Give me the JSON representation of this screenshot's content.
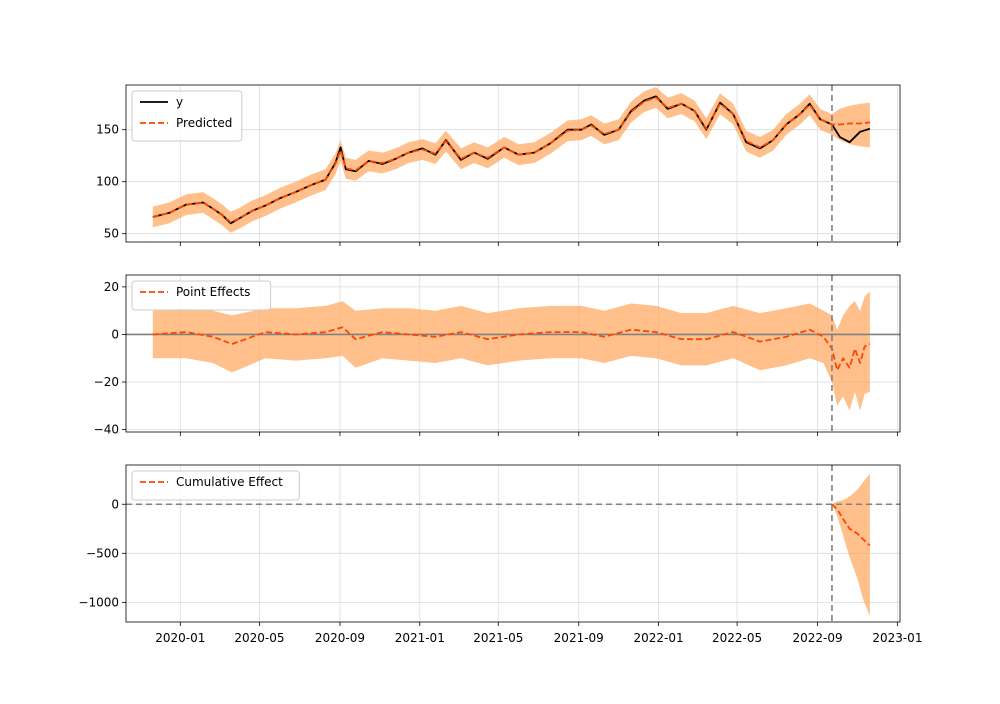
{
  "colors": {
    "observed": "#000000",
    "predicted": "#ff4500",
    "band": "#ffa55a",
    "reference": "#808080",
    "grid": "#dcdcdc"
  },
  "chart_data": [
    {
      "type": "line",
      "id": "observed-predicted",
      "ylim": [
        42,
        193
      ],
      "yticks": [
        50,
        100,
        150
      ],
      "ytick_labels": [
        "50",
        "100",
        "150"
      ],
      "legend": [
        "y",
        "Predicted"
      ],
      "legend_placement": "top-left",
      "grid": true,
      "intervention_date": "2022-09-23",
      "series": [
        {
          "name": "y",
          "color": "#000000",
          "style": "solid",
          "x": [
            "2019-11-20",
            "2019-12-15",
            "2020-01-10",
            "2020-02-05",
            "2020-02-20",
            "2020-03-05",
            "2020-03-18",
            "2020-04-01",
            "2020-04-20",
            "2020-05-10",
            "2020-06-01",
            "2020-06-25",
            "2020-07-20",
            "2020-08-10",
            "2020-08-25",
            "2020-09-02",
            "2020-09-10",
            "2020-09-25",
            "2020-10-15",
            "2020-11-05",
            "2020-11-25",
            "2020-12-15",
            "2021-01-05",
            "2021-01-25",
            "2021-02-10",
            "2021-03-05",
            "2021-03-25",
            "2021-04-15",
            "2021-05-10",
            "2021-06-01",
            "2021-06-25",
            "2021-07-20",
            "2021-08-15",
            "2021-09-05",
            "2021-09-20",
            "2021-10-10",
            "2021-11-01",
            "2021-11-20",
            "2021-12-10",
            "2021-12-28",
            "2022-01-15",
            "2022-02-05",
            "2022-02-25",
            "2022-03-15",
            "2022-04-05",
            "2022-04-25",
            "2022-05-15",
            "2022-06-05",
            "2022-06-25",
            "2022-07-15",
            "2022-08-05",
            "2022-08-20",
            "2022-09-05",
            "2022-09-23",
            "2022-10-05",
            "2022-10-20",
            "2022-11-05",
            "2022-11-20"
          ],
          "values": [
            66,
            70,
            78,
            80,
            74,
            68,
            60,
            65,
            72,
            77,
            84,
            90,
            97,
            102,
            118,
            133,
            112,
            110,
            120,
            117,
            122,
            128,
            132,
            126,
            140,
            121,
            128,
            122,
            133,
            126,
            128,
            137,
            150,
            150,
            155,
            145,
            150,
            168,
            178,
            182,
            170,
            175,
            168,
            150,
            176,
            165,
            138,
            132,
            140,
            155,
            165,
            175,
            160,
            155,
            143,
            138,
            148,
            151
          ]
        },
        {
          "name": "Predicted",
          "color": "#ff4500",
          "style": "dashed",
          "x": [
            "2019-11-20",
            "2019-12-15",
            "2020-01-10",
            "2020-02-05",
            "2020-02-20",
            "2020-03-05",
            "2020-03-18",
            "2020-04-01",
            "2020-04-20",
            "2020-05-10",
            "2020-06-01",
            "2020-06-25",
            "2020-07-20",
            "2020-08-10",
            "2020-08-25",
            "2020-09-02",
            "2020-09-10",
            "2020-09-25",
            "2020-10-15",
            "2020-11-05",
            "2020-11-25",
            "2020-12-15",
            "2021-01-05",
            "2021-01-25",
            "2021-02-10",
            "2021-03-05",
            "2021-03-25",
            "2021-04-15",
            "2021-05-10",
            "2021-06-01",
            "2021-06-25",
            "2021-07-20",
            "2021-08-15",
            "2021-09-05",
            "2021-09-20",
            "2021-10-10",
            "2021-11-01",
            "2021-11-20",
            "2021-12-10",
            "2021-12-28",
            "2022-01-15",
            "2022-02-05",
            "2022-02-25",
            "2022-03-15",
            "2022-04-05",
            "2022-04-25",
            "2022-05-15",
            "2022-06-05",
            "2022-06-25",
            "2022-07-15",
            "2022-08-05",
            "2022-08-20",
            "2022-09-05",
            "2022-09-23",
            "2022-10-05",
            "2022-10-20",
            "2022-11-05",
            "2022-11-20"
          ],
          "values": [
            66,
            70,
            78,
            80,
            74,
            68,
            61,
            65,
            72,
            77,
            84,
            90,
            97,
            102,
            117,
            130,
            113,
            111,
            120,
            118,
            122,
            128,
            131,
            127,
            139,
            122,
            128,
            123,
            133,
            126,
            128,
            137,
            149,
            150,
            154,
            146,
            150,
            167,
            177,
            181,
            171,
            175,
            168,
            151,
            175,
            165,
            139,
            133,
            140,
            155,
            165,
            174,
            160,
            155,
            155,
            156,
            156,
            157
          ],
          "lower": [
            56,
            60,
            68,
            70,
            64,
            58,
            51,
            55,
            62,
            67,
            74,
            80,
            87,
            92,
            107,
            120,
            103,
            101,
            110,
            108,
            112,
            118,
            121,
            117,
            129,
            112,
            118,
            113,
            123,
            116,
            118,
            127,
            139,
            140,
            144,
            136,
            140,
            157,
            167,
            171,
            161,
            165,
            158,
            141,
            165,
            155,
            129,
            123,
            130,
            145,
            155,
            164,
            150,
            145,
            140,
            136,
            134,
            133
          ],
          "upper": [
            76,
            80,
            88,
            90,
            84,
            78,
            71,
            75,
            82,
            87,
            94,
            100,
            107,
            112,
            127,
            140,
            123,
            121,
            130,
            128,
            132,
            138,
            141,
            137,
            149,
            132,
            138,
            133,
            143,
            136,
            138,
            147,
            159,
            160,
            164,
            156,
            160,
            177,
            187,
            191,
            181,
            185,
            178,
            161,
            185,
            175,
            149,
            143,
            150,
            165,
            175,
            184,
            170,
            165,
            170,
            173,
            175,
            176
          ]
        }
      ]
    },
    {
      "type": "line",
      "id": "point-effects",
      "ylim": [
        -41,
        25
      ],
      "yticks": [
        -40,
        -20,
        0,
        20
      ],
      "ytick_labels": [
        "−40",
        "−20",
        "0",
        "20"
      ],
      "legend": [
        "Point Effects"
      ],
      "legend_placement": "top-left",
      "grid": true,
      "reference_line": 0,
      "intervention_date": "2022-09-23",
      "series": [
        {
          "name": "Point Effects",
          "color": "#ff4500",
          "style": "dashed",
          "x": [
            "2019-11-20",
            "2020-01-10",
            "2020-02-20",
            "2020-03-20",
            "2020-05-10",
            "2020-06-25",
            "2020-08-10",
            "2020-09-05",
            "2020-09-25",
            "2020-11-05",
            "2020-12-15",
            "2021-01-25",
            "2021-03-05",
            "2021-04-15",
            "2021-06-01",
            "2021-07-20",
            "2021-09-05",
            "2021-10-10",
            "2021-11-20",
            "2021-12-28",
            "2022-02-05",
            "2022-03-15",
            "2022-04-25",
            "2022-06-05",
            "2022-07-15",
            "2022-08-20",
            "2022-09-10",
            "2022-09-23",
            "2022-10-01",
            "2022-10-10",
            "2022-10-20",
            "2022-10-28",
            "2022-11-05",
            "2022-11-12",
            "2022-11-20"
          ],
          "values": [
            0,
            1,
            -1,
            -4,
            1,
            0,
            1,
            3,
            -2,
            1,
            0,
            -1,
            1,
            -2,
            0,
            1,
            1,
            -1,
            2,
            1,
            -2,
            -2,
            1,
            -3,
            -1,
            2,
            -1,
            -6,
            -15,
            -10,
            -14,
            -6,
            -12,
            -5,
            -4
          ],
          "lower": [
            -10,
            -10,
            -12,
            -16,
            -10,
            -11,
            -10,
            -9,
            -14,
            -10,
            -11,
            -12,
            -10,
            -13,
            -11,
            -10,
            -10,
            -12,
            -9,
            -10,
            -13,
            -13,
            -10,
            -15,
            -13,
            -10,
            -12,
            -20,
            -30,
            -26,
            -32,
            -24,
            -32,
            -25,
            -24
          ],
          "upper": [
            10,
            11,
            10,
            8,
            11,
            11,
            12,
            14,
            10,
            11,
            11,
            10,
            12,
            9,
            11,
            12,
            12,
            10,
            13,
            12,
            9,
            9,
            12,
            9,
            11,
            13,
            10,
            8,
            2,
            8,
            12,
            14,
            10,
            16,
            18
          ]
        }
      ]
    },
    {
      "type": "line",
      "id": "cumulative-effect",
      "ylim": [
        -1200,
        400
      ],
      "yticks": [
        -1000,
        -500,
        0
      ],
      "ytick_labels": [
        "−1000",
        "−500",
        "0"
      ],
      "legend": [
        "Cumulative Effect"
      ],
      "legend_placement": "top-left",
      "grid": true,
      "reference_line": 0,
      "intervention_date": "2022-09-23",
      "series": [
        {
          "name": "Cumulative Effect",
          "color": "#ff4500",
          "style": "dashed",
          "x": [
            "2022-09-23",
            "2022-10-01",
            "2022-10-10",
            "2022-10-20",
            "2022-11-01",
            "2022-11-10",
            "2022-11-20"
          ],
          "values": [
            0,
            -50,
            -150,
            -250,
            -300,
            -360,
            -420
          ],
          "lower": [
            0,
            -120,
            -320,
            -540,
            -760,
            -980,
            -1140
          ],
          "upper": [
            0,
            30,
            40,
            80,
            150,
            230,
            310
          ]
        }
      ]
    }
  ],
  "x_axis": {
    "ticks": [
      "2020-01-01",
      "2020-05-01",
      "2020-09-01",
      "2021-01-01",
      "2021-05-01",
      "2021-09-01",
      "2022-01-01",
      "2022-05-01",
      "2022-09-01",
      "2023-01-01"
    ],
    "tick_labels": [
      "2020-01",
      "2020-05",
      "2020-09",
      "2021-01",
      "2021-05",
      "2021-09",
      "2022-01",
      "2022-05",
      "2022-09",
      "2023-01"
    ],
    "range": [
      "2019-10-10",
      "2023-01-05"
    ]
  }
}
